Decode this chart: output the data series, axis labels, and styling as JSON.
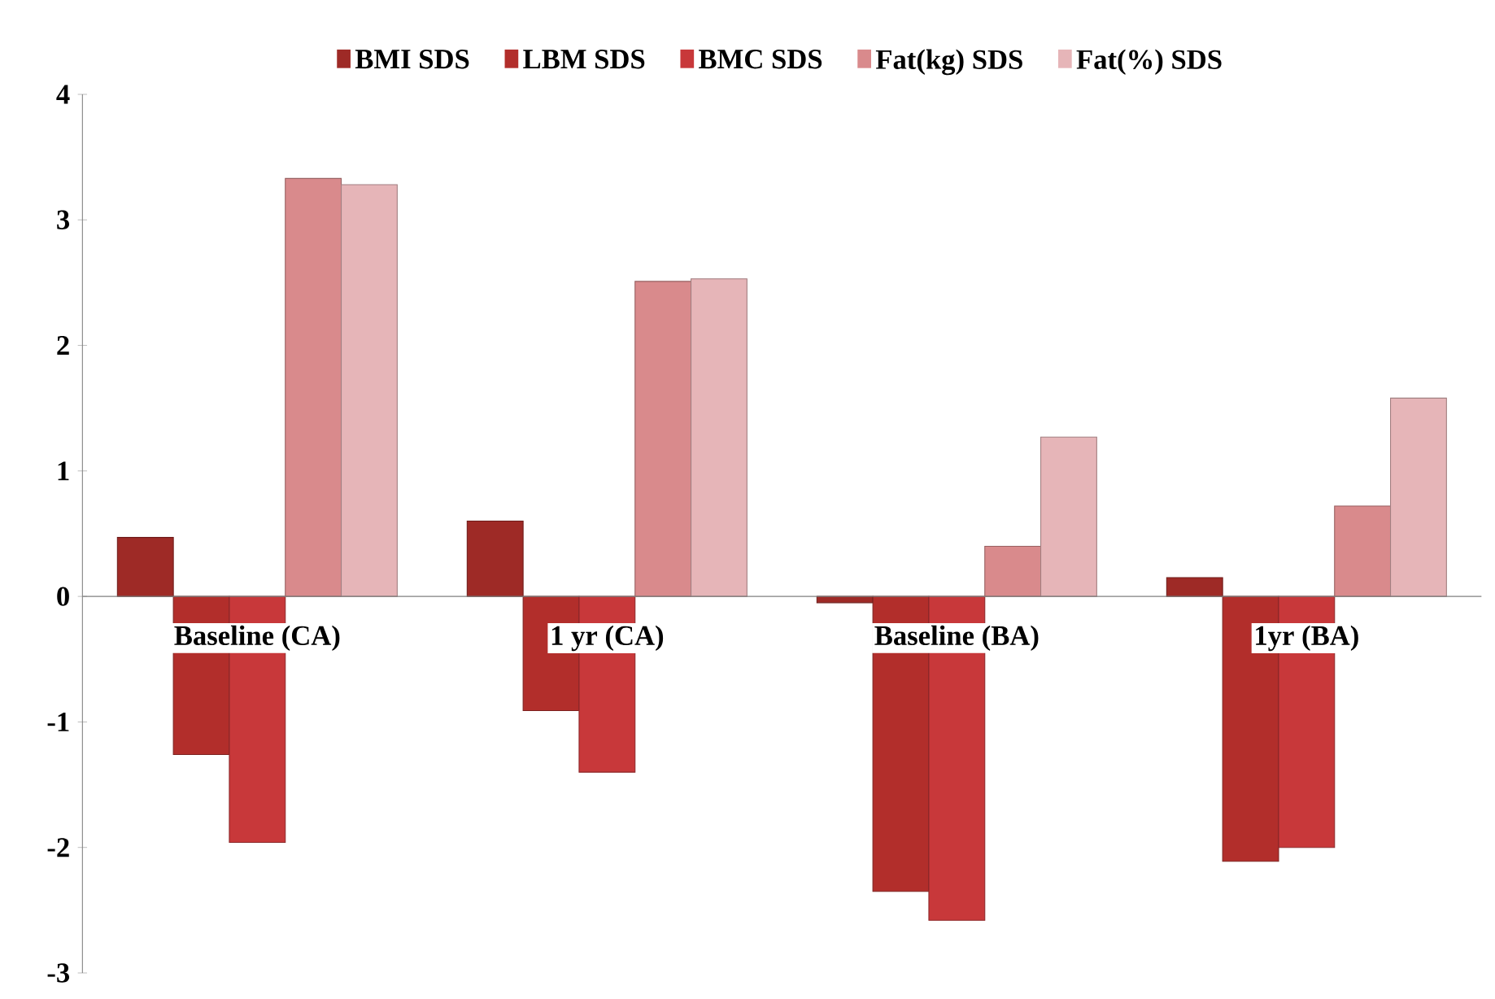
{
  "chart_data": {
    "type": "bar",
    "categories": [
      "Baseline (CA)",
      "1 yr (CA)",
      "Baseline (BA)",
      "1yr (BA)"
    ],
    "series": [
      {
        "name": "BMI SDS",
        "color": "#9e2a26",
        "values": [
          0.47,
          0.6,
          -0.05,
          0.15
        ]
      },
      {
        "name": "LBM SDS",
        "color": "#b22e2b",
        "values": [
          -1.26,
          -0.91,
          -2.35,
          -2.11
        ]
      },
      {
        "name": "BMC SDS",
        "color": "#c8383a",
        "values": [
          -1.96,
          -1.4,
          -2.58,
          -2.0
        ]
      },
      {
        "name": "Fat(kg) SDS",
        "color": "#d98a8c",
        "values": [
          3.33,
          2.51,
          0.4,
          0.72
        ]
      },
      {
        "name": "Fat(%) SDS",
        "color": "#e6b5b8",
        "values": [
          3.28,
          2.53,
          1.27,
          1.58
        ]
      }
    ],
    "ylim": [
      -3,
      4
    ],
    "yticks": [
      -3,
      -2,
      -1,
      0,
      1,
      2,
      3,
      4
    ],
    "grid": false,
    "legend": "top"
  }
}
